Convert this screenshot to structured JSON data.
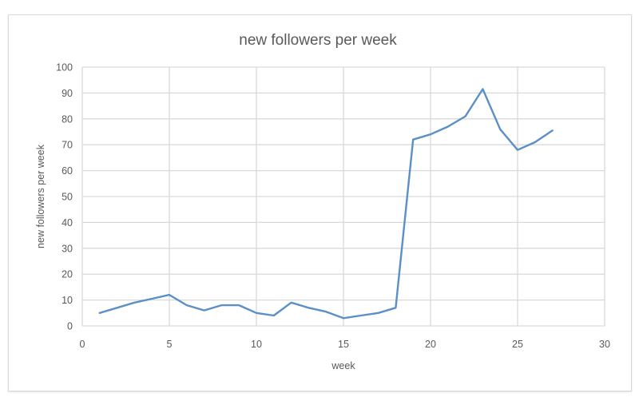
{
  "chart_data": {
    "type": "line",
    "title": "new followers per week",
    "xlabel": "week",
    "ylabel": "new followers per week",
    "xlim": [
      0,
      30
    ],
    "ylim": [
      0,
      100
    ],
    "x_ticks": [
      0,
      5,
      10,
      15,
      20,
      25,
      30
    ],
    "y_ticks": [
      0,
      10,
      20,
      30,
      40,
      50,
      60,
      70,
      80,
      90,
      100
    ],
    "grid": {
      "x": true,
      "y": true
    },
    "legend": null,
    "series": [
      {
        "name": "new followers per week",
        "color": "#5b8fc7",
        "x": [
          1,
          2,
          3,
          4,
          5,
          6,
          7,
          8,
          9,
          10,
          11,
          12,
          13,
          14,
          15,
          16,
          17,
          18,
          19,
          20,
          21,
          22,
          23,
          24,
          25,
          26,
          27
        ],
        "values": [
          5,
          7,
          9,
          10.5,
          12,
          8,
          6,
          8,
          8,
          5,
          4,
          9,
          7,
          5.5,
          3,
          4,
          5,
          7,
          72,
          74,
          77,
          81,
          91.5,
          76,
          68,
          71,
          75.5
        ]
      }
    ]
  },
  "colors": {
    "line": "#5b8fc7",
    "grid": "#d9d9d9",
    "text": "#595959"
  }
}
